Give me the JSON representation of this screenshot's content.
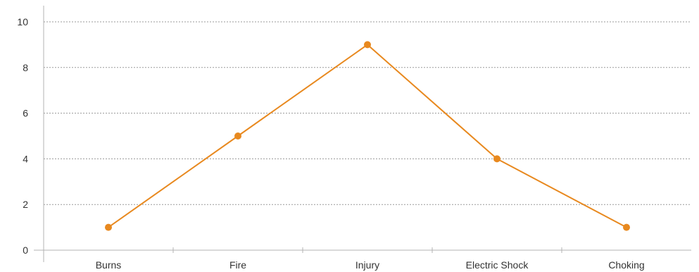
{
  "chart_data": {
    "type": "line",
    "categories": [
      "Burns",
      "Fire",
      "Injury",
      "Electric Shock",
      "Choking"
    ],
    "series": [
      {
        "values": [
          1,
          5,
          9,
          4,
          1
        ]
      }
    ],
    "title": "",
    "xlabel": "",
    "ylabel": "",
    "ylim": [
      0,
      10
    ],
    "yticks": [
      "0",
      "2",
      "4",
      "6",
      "8",
      "10"
    ],
    "grid": "horizontal dashed",
    "legend": "none",
    "colors": {
      "line": "#e8891f",
      "grid": "#9a9a9a",
      "axis": "#b3b3b3",
      "text": "#333333"
    }
  }
}
